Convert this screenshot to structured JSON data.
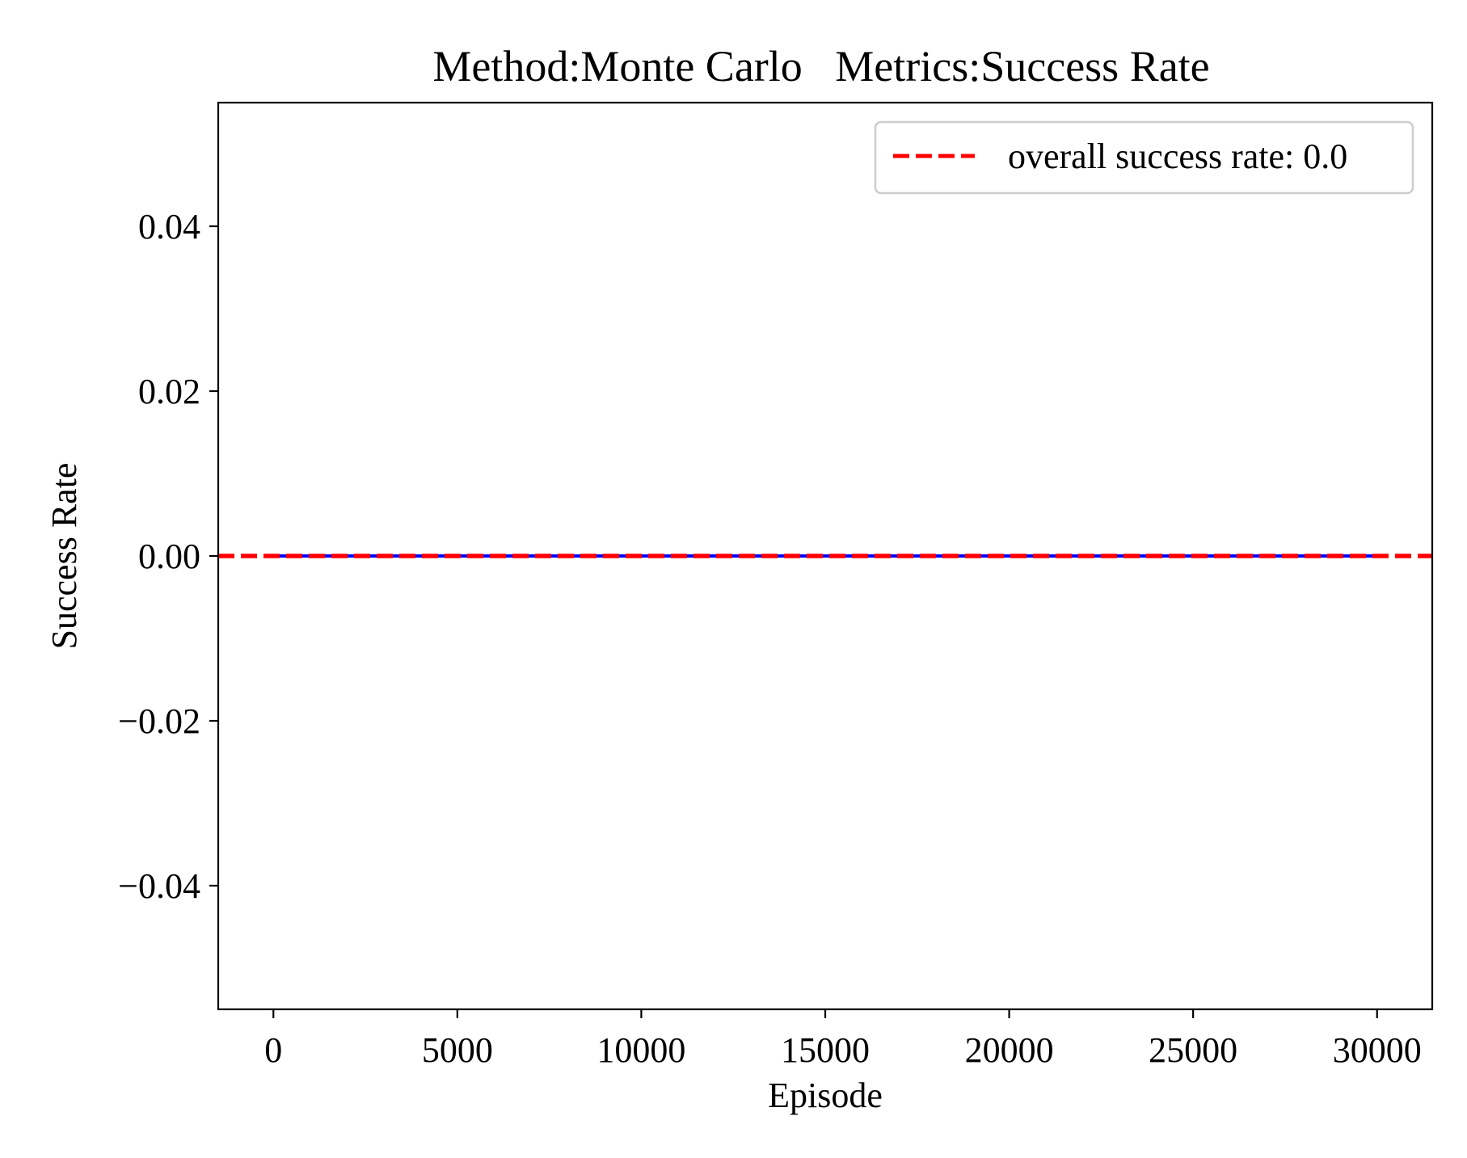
{
  "chart_data": {
    "type": "line",
    "title": "Method:Monte Carlo   Metrics:Success Rate",
    "xlabel": "Episode",
    "ylabel": "Success Rate",
    "xlim": [
      -1500,
      31500
    ],
    "ylim": [
      -0.055,
      0.055
    ],
    "x_ticks": [
      0,
      5000,
      10000,
      15000,
      20000,
      25000,
      30000
    ],
    "x_tick_labels": [
      "0",
      "5000",
      "10000",
      "15000",
      "20000",
      "25000",
      "30000"
    ],
    "y_ticks": [
      -0.04,
      -0.02,
      0.0,
      0.02,
      0.04
    ],
    "y_tick_labels": [
      "−0.04",
      "−0.02",
      "0.00",
      "0.02",
      "0.04"
    ],
    "grid": false,
    "legend_position": "top-right",
    "series": [
      {
        "style": "solid",
        "color": "#0000ff",
        "x": [
          0,
          30000
        ],
        "y": [
          0.0,
          0.0
        ]
      },
      {
        "name": "overall success rate: 0.0",
        "style": "dashed",
        "color": "#ff0000",
        "y_constant": 0.0
      }
    ]
  }
}
